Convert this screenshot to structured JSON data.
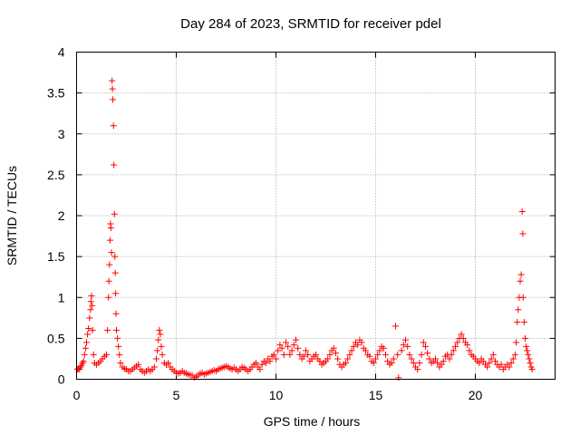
{
  "chart_data": {
    "type": "scatter",
    "title": "Day 284 of 2023, SRMTID for receiver pdel",
    "xlabel": "GPS time / hours",
    "ylabel": "SRMTID / TECUs",
    "xlim": [
      0,
      24
    ],
    "ylim": [
      0,
      4
    ],
    "xticks": [
      0,
      5,
      10,
      15,
      20
    ],
    "xtick_labels": [
      "0",
      "5",
      "10",
      "15",
      "20"
    ],
    "yticks": [
      0,
      0.5,
      1,
      1.5,
      2,
      2.5,
      3,
      3.5,
      4
    ],
    "ytick_labels": [
      "0",
      "0.5",
      "1",
      "1.5",
      "2",
      "2.5",
      "3",
      "3.5",
      "4"
    ],
    "grid": true,
    "marker": "+",
    "marker_color": "#ff0000",
    "series": [
      {
        "name": "SRMTID",
        "points": [
          [
            0.05,
            0.12
          ],
          [
            0.1,
            0.13
          ],
          [
            0.15,
            0.12
          ],
          [
            0.2,
            0.15
          ],
          [
            0.25,
            0.17
          ],
          [
            0.3,
            0.2
          ],
          [
            0.35,
            0.22
          ],
          [
            0.4,
            0.3
          ],
          [
            0.45,
            0.38
          ],
          [
            0.5,
            0.45
          ],
          [
            0.55,
            0.55
          ],
          [
            0.6,
            0.62
          ],
          [
            0.65,
            0.75
          ],
          [
            0.7,
            0.85
          ],
          [
            0.72,
            0.95
          ],
          [
            0.75,
            1.02
          ],
          [
            0.78,
            0.9
          ],
          [
            0.8,
            0.6
          ],
          [
            0.85,
            0.3
          ],
          [
            0.9,
            0.2
          ],
          [
            1.0,
            0.18
          ],
          [
            1.1,
            0.2
          ],
          [
            1.2,
            0.22
          ],
          [
            1.3,
            0.25
          ],
          [
            1.4,
            0.28
          ],
          [
            1.5,
            0.3
          ],
          [
            1.55,
            0.6
          ],
          [
            1.6,
            1.0
          ],
          [
            1.62,
            1.2
          ],
          [
            1.65,
            1.4
          ],
          [
            1.68,
            1.7
          ],
          [
            1.7,
            1.9
          ],
          [
            1.72,
            1.85
          ],
          [
            1.75,
            1.55
          ],
          [
            1.78,
            3.65
          ],
          [
            1.8,
            3.55
          ],
          [
            1.82,
            3.42
          ],
          [
            1.85,
            3.1
          ],
          [
            1.87,
            2.62
          ],
          [
            1.9,
            2.02
          ],
          [
            1.92,
            1.5
          ],
          [
            1.94,
            1.3
          ],
          [
            1.96,
            1.05
          ],
          [
            1.98,
            0.8
          ],
          [
            2.0,
            0.6
          ],
          [
            2.05,
            0.5
          ],
          [
            2.1,
            0.4
          ],
          [
            2.15,
            0.3
          ],
          [
            2.2,
            0.2
          ],
          [
            2.3,
            0.15
          ],
          [
            2.4,
            0.13
          ],
          [
            2.5,
            0.12
          ],
          [
            2.6,
            0.1
          ],
          [
            2.7,
            0.1
          ],
          [
            2.8,
            0.12
          ],
          [
            2.9,
            0.14
          ],
          [
            3.0,
            0.16
          ],
          [
            3.1,
            0.18
          ],
          [
            3.2,
            0.12
          ],
          [
            3.3,
            0.1
          ],
          [
            3.4,
            0.08
          ],
          [
            3.5,
            0.1
          ],
          [
            3.6,
            0.12
          ],
          [
            3.7,
            0.1
          ],
          [
            3.8,
            0.12
          ],
          [
            3.9,
            0.15
          ],
          [
            4.0,
            0.25
          ],
          [
            4.05,
            0.35
          ],
          [
            4.1,
            0.48
          ],
          [
            4.15,
            0.6
          ],
          [
            4.2,
            0.55
          ],
          [
            4.25,
            0.4
          ],
          [
            4.3,
            0.3
          ],
          [
            4.4,
            0.2
          ],
          [
            4.5,
            0.18
          ],
          [
            4.6,
            0.2
          ],
          [
            4.7,
            0.15
          ],
          [
            4.8,
            0.12
          ],
          [
            4.9,
            0.1
          ],
          [
            5.0,
            0.08
          ],
          [
            5.1,
            0.07
          ],
          [
            5.2,
            0.08
          ],
          [
            5.3,
            0.1
          ],
          [
            5.4,
            0.08
          ],
          [
            5.5,
            0.07
          ],
          [
            5.6,
            0.06
          ],
          [
            5.7,
            0.05
          ],
          [
            5.8,
            0.05
          ],
          [
            5.9,
            0.02
          ],
          [
            6.0,
            0.03
          ],
          [
            6.1,
            0.05
          ],
          [
            6.2,
            0.07
          ],
          [
            6.3,
            0.08
          ],
          [
            6.4,
            0.06
          ],
          [
            6.5,
            0.07
          ],
          [
            6.6,
            0.08
          ],
          [
            6.7,
            0.09
          ],
          [
            6.8,
            0.1
          ],
          [
            6.9,
            0.11
          ],
          [
            7.0,
            0.1
          ],
          [
            7.1,
            0.12
          ],
          [
            7.2,
            0.13
          ],
          [
            7.3,
            0.14
          ],
          [
            7.4,
            0.15
          ],
          [
            7.5,
            0.16
          ],
          [
            7.6,
            0.15
          ],
          [
            7.7,
            0.13
          ],
          [
            7.8,
            0.12
          ],
          [
            7.9,
            0.14
          ],
          [
            8.0,
            0.12
          ],
          [
            8.1,
            0.1
          ],
          [
            8.2,
            0.12
          ],
          [
            8.3,
            0.15
          ],
          [
            8.4,
            0.14
          ],
          [
            8.5,
            0.12
          ],
          [
            8.6,
            0.1
          ],
          [
            8.7,
            0.12
          ],
          [
            8.8,
            0.15
          ],
          [
            8.9,
            0.18
          ],
          [
            9.0,
            0.2
          ],
          [
            9.1,
            0.15
          ],
          [
            9.2,
            0.12
          ],
          [
            9.3,
            0.18
          ],
          [
            9.4,
            0.22
          ],
          [
            9.5,
            0.2
          ],
          [
            9.6,
            0.25
          ],
          [
            9.7,
            0.22
          ],
          [
            9.8,
            0.28
          ],
          [
            9.9,
            0.3
          ],
          [
            10.0,
            0.25
          ],
          [
            10.1,
            0.35
          ],
          [
            10.2,
            0.42
          ],
          [
            10.3,
            0.38
          ],
          [
            10.4,
            0.3
          ],
          [
            10.5,
            0.45
          ],
          [
            10.6,
            0.4
          ],
          [
            10.7,
            0.3
          ],
          [
            10.8,
            0.35
          ],
          [
            10.9,
            0.42
          ],
          [
            11.0,
            0.48
          ],
          [
            11.1,
            0.38
          ],
          [
            11.2,
            0.3
          ],
          [
            11.3,
            0.25
          ],
          [
            11.4,
            0.28
          ],
          [
            11.5,
            0.35
          ],
          [
            11.6,
            0.3
          ],
          [
            11.7,
            0.22
          ],
          [
            11.8,
            0.25
          ],
          [
            11.9,
            0.28
          ],
          [
            12.0,
            0.3
          ],
          [
            12.1,
            0.25
          ],
          [
            12.2,
            0.22
          ],
          [
            12.3,
            0.18
          ],
          [
            12.4,
            0.2
          ],
          [
            12.5,
            0.22
          ],
          [
            12.6,
            0.25
          ],
          [
            12.7,
            0.3
          ],
          [
            12.8,
            0.35
          ],
          [
            12.9,
            0.38
          ],
          [
            13.0,
            0.32
          ],
          [
            13.1,
            0.25
          ],
          [
            13.2,
            0.18
          ],
          [
            13.3,
            0.15
          ],
          [
            13.4,
            0.18
          ],
          [
            13.5,
            0.2
          ],
          [
            13.6,
            0.25
          ],
          [
            13.7,
            0.3
          ],
          [
            13.8,
            0.35
          ],
          [
            13.9,
            0.4
          ],
          [
            14.0,
            0.45
          ],
          [
            14.1,
            0.42
          ],
          [
            14.2,
            0.48
          ],
          [
            14.3,
            0.45
          ],
          [
            14.4,
            0.38
          ],
          [
            14.5,
            0.35
          ],
          [
            14.6,
            0.3
          ],
          [
            14.7,
            0.28
          ],
          [
            14.8,
            0.22
          ],
          [
            14.9,
            0.2
          ],
          [
            15.0,
            0.25
          ],
          [
            15.1,
            0.3
          ],
          [
            15.2,
            0.35
          ],
          [
            15.3,
            0.4
          ],
          [
            15.4,
            0.38
          ],
          [
            15.5,
            0.3
          ],
          [
            15.6,
            0.22
          ],
          [
            15.7,
            0.18
          ],
          [
            15.8,
            0.2
          ],
          [
            15.9,
            0.25
          ],
          [
            16.0,
            0.65
          ],
          [
            16.1,
            0.3
          ],
          [
            16.15,
            0.02
          ],
          [
            16.3,
            0.35
          ],
          [
            16.4,
            0.42
          ],
          [
            16.5,
            0.48
          ],
          [
            16.6,
            0.4
          ],
          [
            16.7,
            0.3
          ],
          [
            16.8,
            0.25
          ],
          [
            16.9,
            0.2
          ],
          [
            17.0,
            0.15
          ],
          [
            17.1,
            0.12
          ],
          [
            17.2,
            0.2
          ],
          [
            17.3,
            0.3
          ],
          [
            17.4,
            0.45
          ],
          [
            17.5,
            0.4
          ],
          [
            17.6,
            0.32
          ],
          [
            17.7,
            0.25
          ],
          [
            17.8,
            0.2
          ],
          [
            17.9,
            0.22
          ],
          [
            18.0,
            0.25
          ],
          [
            18.1,
            0.2
          ],
          [
            18.2,
            0.15
          ],
          [
            18.3,
            0.18
          ],
          [
            18.4,
            0.22
          ],
          [
            18.5,
            0.28
          ],
          [
            18.6,
            0.3
          ],
          [
            18.7,
            0.25
          ],
          [
            18.8,
            0.3
          ],
          [
            18.9,
            0.35
          ],
          [
            19.0,
            0.4
          ],
          [
            19.1,
            0.45
          ],
          [
            19.2,
            0.5
          ],
          [
            19.3,
            0.55
          ],
          [
            19.4,
            0.5
          ],
          [
            19.5,
            0.45
          ],
          [
            19.6,
            0.42
          ],
          [
            19.7,
            0.35
          ],
          [
            19.8,
            0.3
          ],
          [
            19.9,
            0.28
          ],
          [
            20.0,
            0.25
          ],
          [
            20.1,
            0.22
          ],
          [
            20.2,
            0.2
          ],
          [
            20.3,
            0.25
          ],
          [
            20.4,
            0.22
          ],
          [
            20.5,
            0.18
          ],
          [
            20.6,
            0.15
          ],
          [
            20.7,
            0.2
          ],
          [
            20.8,
            0.25
          ],
          [
            20.9,
            0.3
          ],
          [
            21.0,
            0.22
          ],
          [
            21.1,
            0.18
          ],
          [
            21.2,
            0.15
          ],
          [
            21.3,
            0.18
          ],
          [
            21.4,
            0.12
          ],
          [
            21.5,
            0.15
          ],
          [
            21.6,
            0.18
          ],
          [
            21.7,
            0.15
          ],
          [
            21.8,
            0.2
          ],
          [
            21.9,
            0.25
          ],
          [
            22.0,
            0.3
          ],
          [
            22.05,
            0.45
          ],
          [
            22.1,
            0.7
          ],
          [
            22.15,
            0.85
          ],
          [
            22.2,
            1.0
          ],
          [
            22.25,
            1.2
          ],
          [
            22.3,
            1.28
          ],
          [
            22.35,
            2.05
          ],
          [
            22.38,
            1.78
          ],
          [
            22.4,
            1.0
          ],
          [
            22.45,
            0.7
          ],
          [
            22.5,
            0.5
          ],
          [
            22.55,
            0.4
          ],
          [
            22.6,
            0.35
          ],
          [
            22.65,
            0.3
          ],
          [
            22.7,
            0.25
          ],
          [
            22.75,
            0.2
          ],
          [
            22.8,
            0.15
          ],
          [
            22.85,
            0.12
          ]
        ]
      }
    ]
  }
}
